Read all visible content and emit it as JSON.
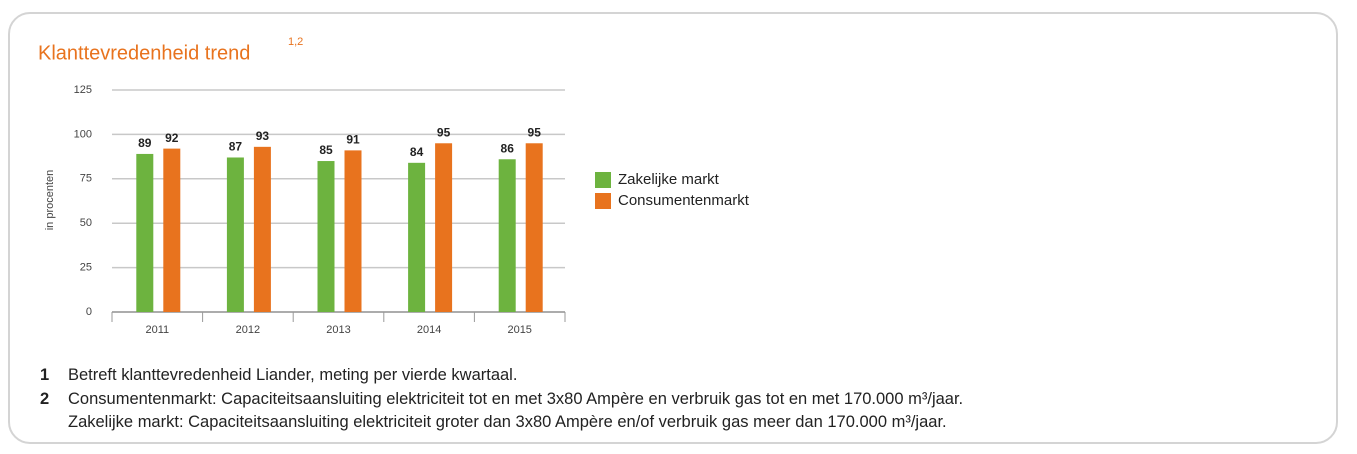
{
  "chart_data": {
    "type": "bar",
    "title": "Klanttevredenheid trend",
    "title_note": "1,2",
    "ylabel": "in procenten",
    "categories": [
      "2011",
      "2012",
      "2013",
      "2014",
      "2015"
    ],
    "series": [
      {
        "name": "Zakelijke markt",
        "color": "#6db33f",
        "values": [
          89,
          87,
          85,
          84,
          86
        ]
      },
      {
        "name": "Consumentenmarkt",
        "color": "#e8731e",
        "values": [
          92,
          93,
          91,
          95,
          95
        ]
      }
    ],
    "ylim": [
      0,
      125
    ],
    "yticks": [
      0,
      25,
      50,
      75,
      100,
      125
    ],
    "grid": true,
    "legend": "right"
  },
  "footnotes": [
    {
      "number": "1",
      "lines": [
        "Betreft klanttevredenheid Liander, meting per vierde kwartaal."
      ]
    },
    {
      "number": "2",
      "lines": [
        "Consumentenmarkt: Capaciteitsaansluiting elektriciteit tot en met 3x80 Ampère en verbruik gas tot en met 170.000 m³/jaar.",
        "Zakelijke markt: Capaciteitsaansluiting elektriciteit groter dan 3x80 Ampère en/of verbruik gas meer dan 170.000 m³/jaar."
      ]
    }
  ]
}
